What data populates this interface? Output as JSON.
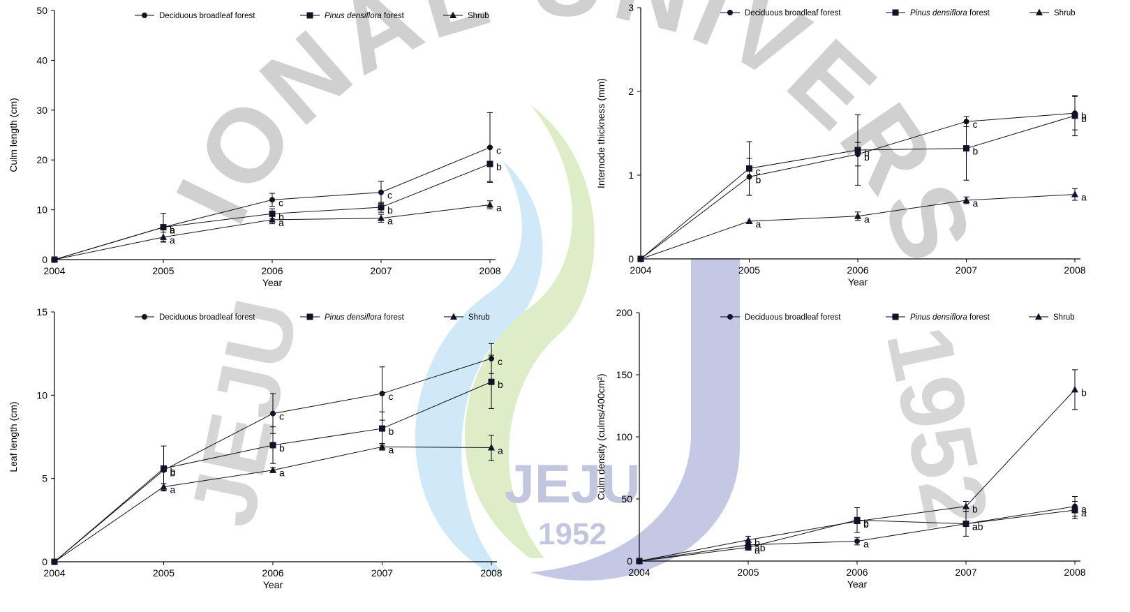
{
  "watermark": {
    "arc_text": "NATIONAL UNIVERSITY",
    "left_text": "JEJU",
    "right_text": "1952",
    "emblem_text": "JEJU",
    "emblem_year": "1952"
  },
  "legend": {
    "deciduous": "Deciduous broadleaf forest",
    "pinus_italic": "Pinus densiflora",
    "pinus_suffix": " forest",
    "shrub": "Shrub"
  },
  "chart_data": [
    {
      "id": "culm-length",
      "type": "line",
      "xlabel": "Year",
      "ylabel": "Culm length (cm)",
      "x": [
        "2004",
        "2005",
        "2006",
        "2007",
        "2008"
      ],
      "ylim": [
        0,
        50
      ],
      "yticks": [
        0,
        10,
        20,
        30,
        40,
        50
      ],
      "series": [
        {
          "name": "Deciduous broadleaf forest",
          "marker": "circle",
          "values": [
            0,
            6.5,
            12,
            13.5,
            22.5
          ],
          "err": [
            0,
            0,
            1.3,
            2.2,
            7.0
          ],
          "labels": [
            "",
            "b",
            "c",
            "c",
            "c"
          ]
        },
        {
          "name": "Pinus densiflora forest",
          "marker": "square",
          "values": [
            0,
            6.5,
            9.2,
            10.5,
            19.2
          ],
          "err": [
            0,
            2.8,
            1.0,
            1.0,
            3.5
          ],
          "labels": [
            "",
            "a",
            "b",
            "b",
            "b"
          ]
        },
        {
          "name": "Shrub",
          "marker": "triangle",
          "values": [
            0,
            4.5,
            8.0,
            8.3,
            11.0
          ],
          "err": [
            0,
            1.0,
            0.8,
            0.8,
            0.8
          ],
          "labels": [
            "",
            "a",
            "a",
            "a",
            "a"
          ]
        }
      ]
    },
    {
      "id": "internode-thickness",
      "type": "line",
      "xlabel": "Year",
      "ylabel": "Internode thickness (mm)",
      "x": [
        "2004",
        "2005",
        "2006",
        "2007",
        "2008"
      ],
      "ylim": [
        0,
        3
      ],
      "yticks": [
        0,
        1,
        2,
        3
      ],
      "series": [
        {
          "name": "Deciduous broadleaf forest",
          "marker": "circle",
          "values": [
            0,
            0.98,
            1.25,
            1.64,
            1.74
          ],
          "err": [
            0,
            0.22,
            0.14,
            0.06,
            0.2
          ],
          "labels": [
            "",
            "b",
            "b",
            "c",
            "b"
          ]
        },
        {
          "name": "Pinus densiflora forest",
          "marker": "square",
          "values": [
            0,
            1.08,
            1.3,
            1.32,
            1.71
          ],
          "err": [
            0,
            0.32,
            0.42,
            0.38,
            0.24
          ],
          "labels": [
            "",
            "c",
            "b",
            "b",
            "b"
          ]
        },
        {
          "name": "Shrub",
          "marker": "triangle",
          "values": [
            0,
            0.45,
            0.51,
            0.7,
            0.77
          ],
          "err": [
            0,
            0,
            0.05,
            0.04,
            0.07
          ],
          "labels": [
            "",
            "a",
            "a",
            "a",
            "a"
          ]
        }
      ]
    },
    {
      "id": "leaf-length",
      "type": "line",
      "xlabel": "Year",
      "ylabel": "Leaf length (cm)",
      "x": [
        "2004",
        "2005",
        "2006",
        "2007",
        "2008"
      ],
      "ylim": [
        0,
        15
      ],
      "yticks": [
        0,
        5,
        10,
        15
      ],
      "series": [
        {
          "name": "Deciduous broadleaf forest",
          "marker": "circle",
          "values": [
            0,
            5.5,
            8.9,
            10.1,
            12.2
          ],
          "err": [
            0,
            0,
            1.2,
            1.6,
            0.9
          ],
          "labels": [
            "",
            "b",
            "c",
            "c",
            "c"
          ]
        },
        {
          "name": "Pinus densiflora forest",
          "marker": "square",
          "values": [
            0,
            5.6,
            7.0,
            8.0,
            10.8
          ],
          "err": [
            0,
            1.35,
            1.1,
            1.0,
            1.6
          ],
          "labels": [
            "",
            "b",
            "b",
            "b",
            "b"
          ]
        },
        {
          "name": "Shrub",
          "marker": "triangle",
          "values": [
            0,
            4.5,
            5.5,
            6.9,
            6.85
          ],
          "err": [
            0,
            0.2,
            0.15,
            0.2,
            0.75
          ],
          "labels": [
            "",
            "a",
            "a",
            "a",
            "a"
          ]
        }
      ]
    },
    {
      "id": "culm-density",
      "type": "line",
      "xlabel": "Year",
      "ylabel": "Culm density (culms/400cm²)",
      "x": [
        "2004",
        "2005",
        "2006",
        "2007",
        "2008"
      ],
      "ylim": [
        0,
        200
      ],
      "yticks": [
        0,
        50,
        100,
        150,
        200
      ],
      "series": [
        {
          "name": "Deciduous broadleaf forest",
          "marker": "circle",
          "values": [
            0,
            13,
            16,
            30,
            44
          ],
          "err": [
            0,
            0,
            3,
            0,
            8
          ],
          "labels": [
            "",
            "ab",
            "a",
            "a",
            "a"
          ]
        },
        {
          "name": "Pinus densiflora forest",
          "marker": "square",
          "values": [
            0,
            11,
            33,
            30,
            41
          ],
          "err": [
            0,
            0,
            10,
            10,
            7
          ],
          "labels": [
            "",
            "a",
            "b",
            "ab",
            "a"
          ]
        },
        {
          "name": "Shrub",
          "marker": "triangle",
          "values": [
            0,
            17,
            32,
            44,
            138
          ],
          "err": [
            0,
            3,
            0,
            4,
            16
          ],
          "labels": [
            "",
            "b",
            "b",
            "b",
            "b"
          ]
        }
      ]
    }
  ]
}
